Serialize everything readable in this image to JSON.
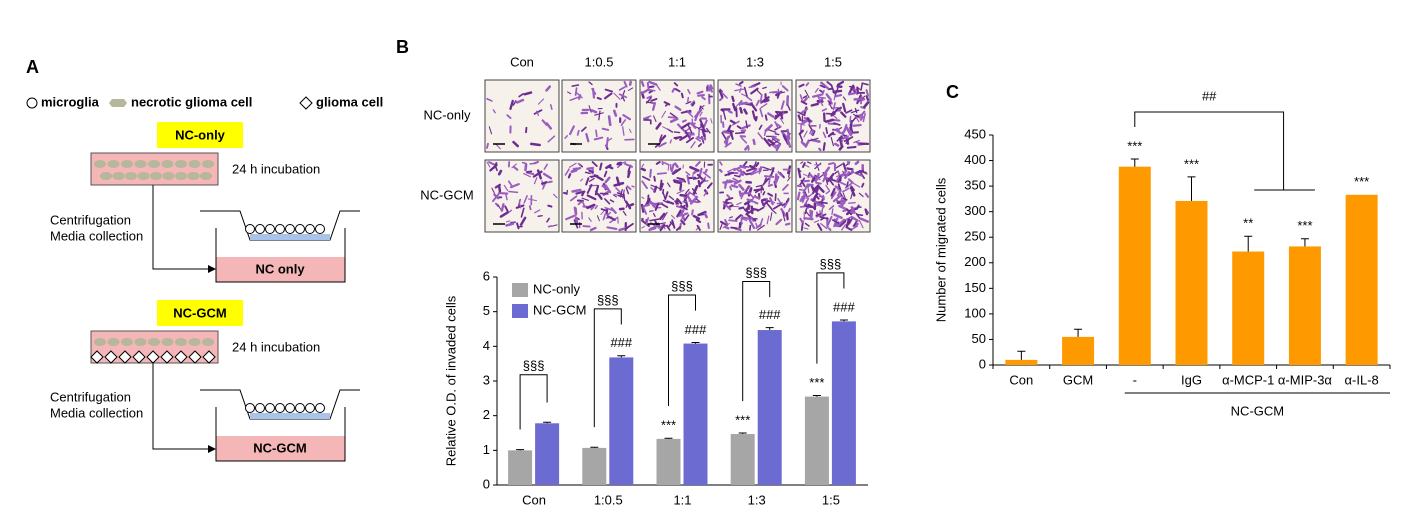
{
  "panel_labels": [
    "A",
    "B",
    "C"
  ],
  "panel_a": {
    "legend": [
      "microglia",
      "necrotic glioma cell",
      "glioma cell"
    ],
    "steps": [
      {
        "title": "NC-only",
        "incubation": "24 h incubation",
        "process": [
          "Centrifugation",
          "Media collection"
        ],
        "product": "NC only"
      },
      {
        "title": "NC-GCM",
        "incubation": "24 h incubation",
        "process": [
          "Centrifugation",
          "Media collection"
        ],
        "product": "NC-GCM"
      }
    ]
  },
  "panel_b": {
    "image_columns": [
      "Con",
      "1:0.5",
      "1:1",
      "1:3",
      "1:5"
    ],
    "image_rows": [
      "NC-only",
      "NC-GCM"
    ]
  },
  "chart_data": [
    {
      "type": "bar",
      "ylabel": "Relative O.D. of invaded cells",
      "categories": [
        "Con",
        "1:0.5",
        "1:1",
        "1:3",
        "1:5"
      ],
      "series": [
        {
          "name": "NC-only",
          "color": "#a6a6a6",
          "values": [
            1.0,
            1.07,
            1.33,
            1.47,
            2.55
          ],
          "errors": [
            0.02,
            0.02,
            0.02,
            0.03,
            0.03
          ],
          "marks": [
            null,
            null,
            "***",
            "***",
            "***"
          ]
        },
        {
          "name": "NC-GCM",
          "color": "#6b6bd2",
          "values": [
            1.78,
            3.68,
            4.08,
            4.47,
            4.72
          ],
          "errors": [
            0.03,
            0.05,
            0.03,
            0.07,
            0.04
          ],
          "marks": [
            null,
            "###",
            "###",
            "###",
            "###"
          ]
        }
      ],
      "brackets": [
        "§§§",
        "§§§",
        "§§§",
        "§§§",
        "§§§"
      ],
      "ylim": [
        0,
        6
      ],
      "yticks": [
        0,
        1,
        2,
        3,
        4,
        5,
        6
      ],
      "legend": "upper left"
    },
    {
      "type": "bar",
      "ylabel": "Number of migrated cells",
      "categories": [
        "Con",
        "GCM",
        "-",
        "IgG",
        "α-MCP-1",
        "α-MIP-3α",
        "α-IL-8"
      ],
      "values": [
        10,
        55,
        388,
        321,
        222,
        232,
        333
      ],
      "errors": [
        17,
        15,
        15,
        47,
        30,
        15,
        null
      ],
      "marks": [
        null,
        null,
        "***",
        "***",
        "**",
        "***",
        "***"
      ],
      "color": "#ff9900",
      "group_label": "NC-GCM",
      "comparison_label": "##",
      "ylim": [
        0,
        450
      ],
      "yticks": [
        0,
        50,
        100,
        150,
        200,
        250,
        300,
        350,
        400,
        450
      ]
    }
  ]
}
